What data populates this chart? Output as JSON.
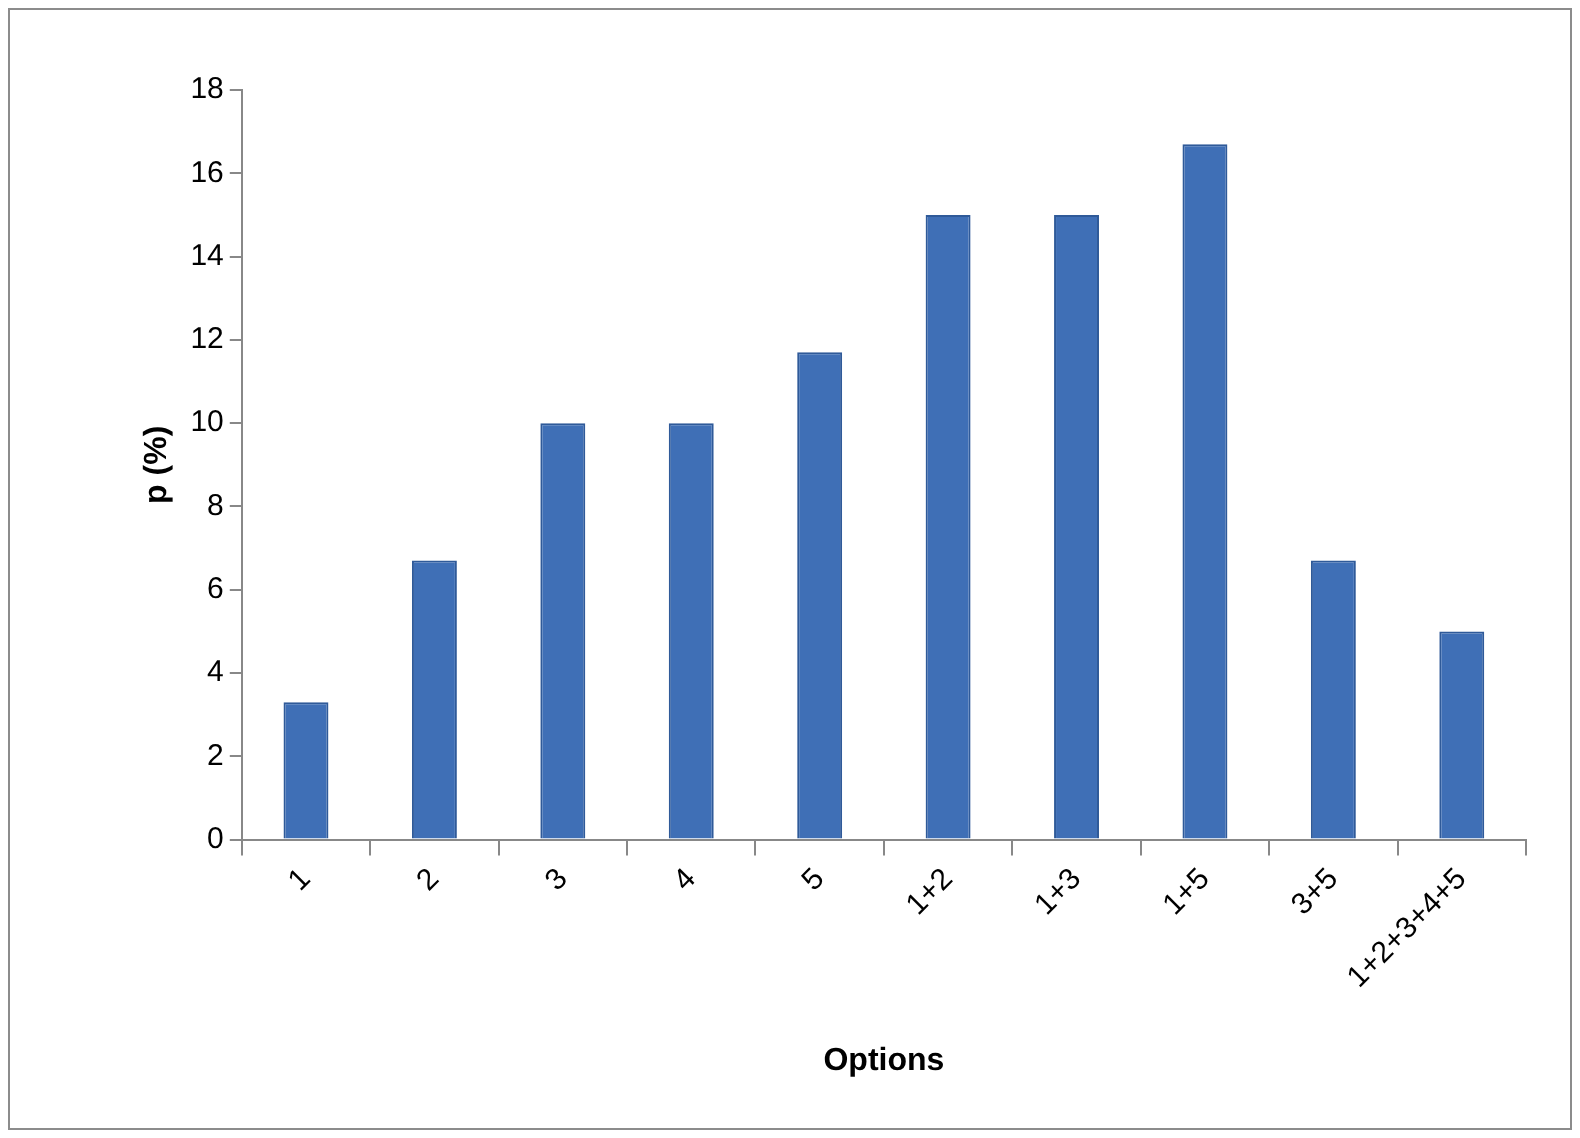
{
  "chart_data": {
    "type": "bar",
    "xlabel": "Options",
    "ylabel": "p (%)",
    "categories": [
      "1",
      "2",
      "3",
      "4",
      "5",
      "1+2",
      "1+3",
      "1+5",
      "3+5",
      "1+2+3+4+5"
    ],
    "values": [
      3.3,
      6.7,
      10,
      10,
      11.7,
      15,
      15,
      16.7,
      6.7,
      5
    ],
    "color": "#3f6fb6",
    "ylim": [
      0,
      18
    ],
    "yticks": [
      0,
      2,
      4,
      6,
      8,
      10,
      12,
      14,
      16,
      18
    ],
    "grid": false,
    "legend": false
  }
}
